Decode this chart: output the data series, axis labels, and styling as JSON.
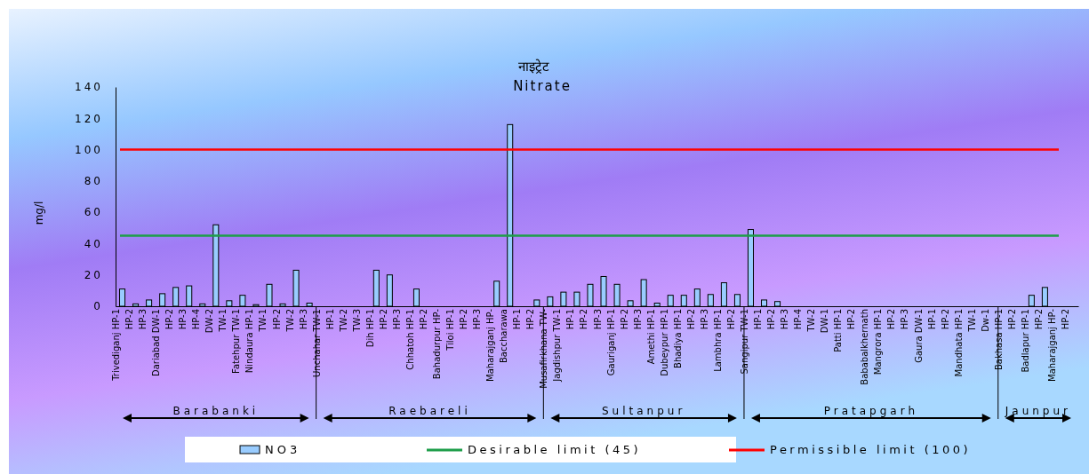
{
  "chart_data": {
    "type": "bar",
    "title": "नाइट्रेट",
    "subtitle": "Nitrate",
    "ylabel": "mg/l",
    "categories": [
      "Trivediganj HP-1",
      "HP-2",
      "HP-3",
      "Dariabad DW-1",
      "HP-2",
      "HP-3",
      "HP-4",
      "DW-2",
      "TW-1",
      "Fatehpur TW-1",
      "Nindaura HP-1",
      "TW-1",
      "HP-2",
      "TW-2",
      "HP-3",
      "Unchahar TW-1",
      "HP-1",
      "TW-2",
      "TW-3",
      "Dih HP-1",
      "HP-2",
      "HP-3",
      "Chhatoh HP-1",
      "HP-2",
      "Bahadurpur HP-",
      "Tiloi HP-1",
      "HP-2",
      "HP-3",
      "Maharajganj HP-",
      "Baccharawa",
      "HP-1",
      "HP-2",
      "Musafirkhana TW-",
      "Jagdishpur TW-1",
      "HP-1",
      "HP-2",
      "HP-3",
      "Gauriganj HP-1",
      "HP-2",
      "HP-3",
      "Amethi HP-1",
      "Dubeypur HP-1",
      "Bhadiya HP-1",
      "HP-2",
      "HP-3",
      "Lambhra HP-1",
      "HP-2",
      "Sangipur TW-1",
      "HP-1",
      "HP-2",
      "HP-3",
      "HP-4",
      "TW-2",
      "DW-1",
      "Patti HP-1",
      "HP-2",
      "Bababalkhernath",
      "Mangrora HP-1",
      "HP-2",
      "HP-3",
      "Gaura DW-1",
      "HP-1",
      "HP-2",
      "Mandhata HP-1",
      "TW-1",
      "Dw-1",
      "Bakhasa HP-1",
      "HP-2",
      "Badlapur HP-1",
      "HP-2",
      "Maharajganj HP-",
      "HP-2"
    ],
    "series": [
      {
        "name": "NO3",
        "color": "#99ccff",
        "values": [
          11,
          1.5,
          4,
          8,
          12,
          13,
          1.5,
          52,
          3.5,
          7,
          1,
          14,
          1.5,
          23,
          2,
          null,
          null,
          null,
          null,
          23,
          20,
          null,
          11,
          null,
          null,
          null,
          null,
          null,
          16,
          116,
          null,
          4,
          6,
          9,
          9,
          14,
          19,
          14,
          3.5,
          17,
          2,
          7,
          7,
          11,
          7.5,
          15,
          7.5,
          49,
          4,
          3,
          null,
          null,
          null,
          null,
          null,
          null,
          null,
          null,
          null,
          null,
          null,
          null,
          null,
          null,
          null,
          null,
          null,
          null,
          7,
          12,
          null,
          null
        ]
      }
    ],
    "ylim": [
      0,
      140
    ],
    "yticks": [
      0,
      20,
      40,
      60,
      80,
      100,
      120,
      140
    ],
    "ref_lines": [
      {
        "axis": "y",
        "value": 45,
        "label": "Desirable limit (45)",
        "color": "#1e9e4a"
      },
      {
        "axis": "y",
        "value": 100,
        "label": "Permissible limit (100)",
        "color": "#ff0000"
      }
    ],
    "annotations": [
      "Barabanki",
      "Raebareli",
      "Sultanpur",
      "Pratapgarh",
      "Jaunpur"
    ],
    "legend": "bottom",
    "grid": false
  }
}
